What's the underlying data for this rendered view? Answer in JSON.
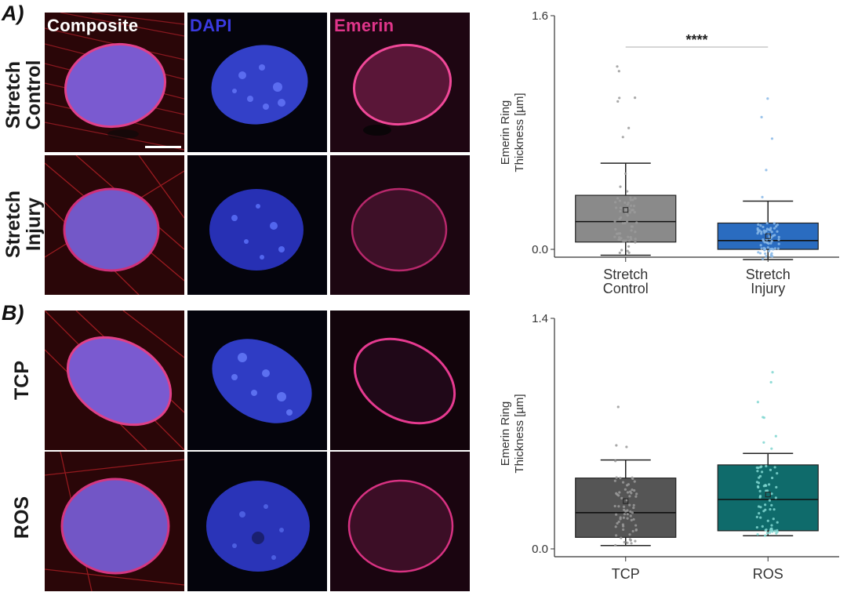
{
  "panels": [
    {
      "label": "A)",
      "rows": [
        "Stretch Control",
        "Stretch Injury"
      ],
      "channels": [
        {
          "label": "Composite",
          "color": "#ffffff"
        },
        {
          "label": "DAPI",
          "color": "#3a3ae0"
        },
        {
          "label": "Emerin",
          "color": "#e0358a"
        }
      ]
    },
    {
      "label": "B)",
      "rows": [
        "TCP",
        "ROS"
      ]
    }
  ],
  "chart_data": [
    {
      "type": "box",
      "ylabel": "Emerin Ring Thickness [µm]",
      "ylim": [
        0.0,
        1.6
      ],
      "yticks": [
        "1.6",
        "0.0"
      ],
      "categories": [
        "Stretch Control",
        "Stretch Injury"
      ],
      "significance": "****",
      "series": [
        {
          "color": "#8a8a8a",
          "whisker_low": -0.04,
          "q1": 0.05,
          "median": 0.19,
          "q3": 0.37,
          "whisker_high": 0.59,
          "mean": 0.27
        },
        {
          "color": "#2a6cc0",
          "whisker_low": -0.07,
          "q1": 0.0,
          "median": 0.06,
          "q3": 0.18,
          "whisker_high": 0.33,
          "mean": 0.09
        }
      ]
    },
    {
      "type": "box",
      "ylabel": "Emerin Ring Thickness [µm]",
      "ylim": [
        0.0,
        1.4
      ],
      "yticks": [
        "1.4",
        "0.0"
      ],
      "categories": [
        "TCP",
        "ROS"
      ],
      "series": [
        {
          "color": "#555555",
          "whisker_low": 0.02,
          "q1": 0.07,
          "median": 0.22,
          "q3": 0.43,
          "whisker_high": 0.54,
          "mean": 0.29
        },
        {
          "color": "#0f6b6b",
          "whisker_low": 0.08,
          "q1": 0.11,
          "median": 0.3,
          "q3": 0.51,
          "whisker_high": 0.58,
          "mean": 0.33
        }
      ]
    }
  ],
  "colors": {
    "composite_bg": "#3a0a0a",
    "dapi_nucleus": "#3a4ad8",
    "emerin_ring": "#e0358a"
  }
}
